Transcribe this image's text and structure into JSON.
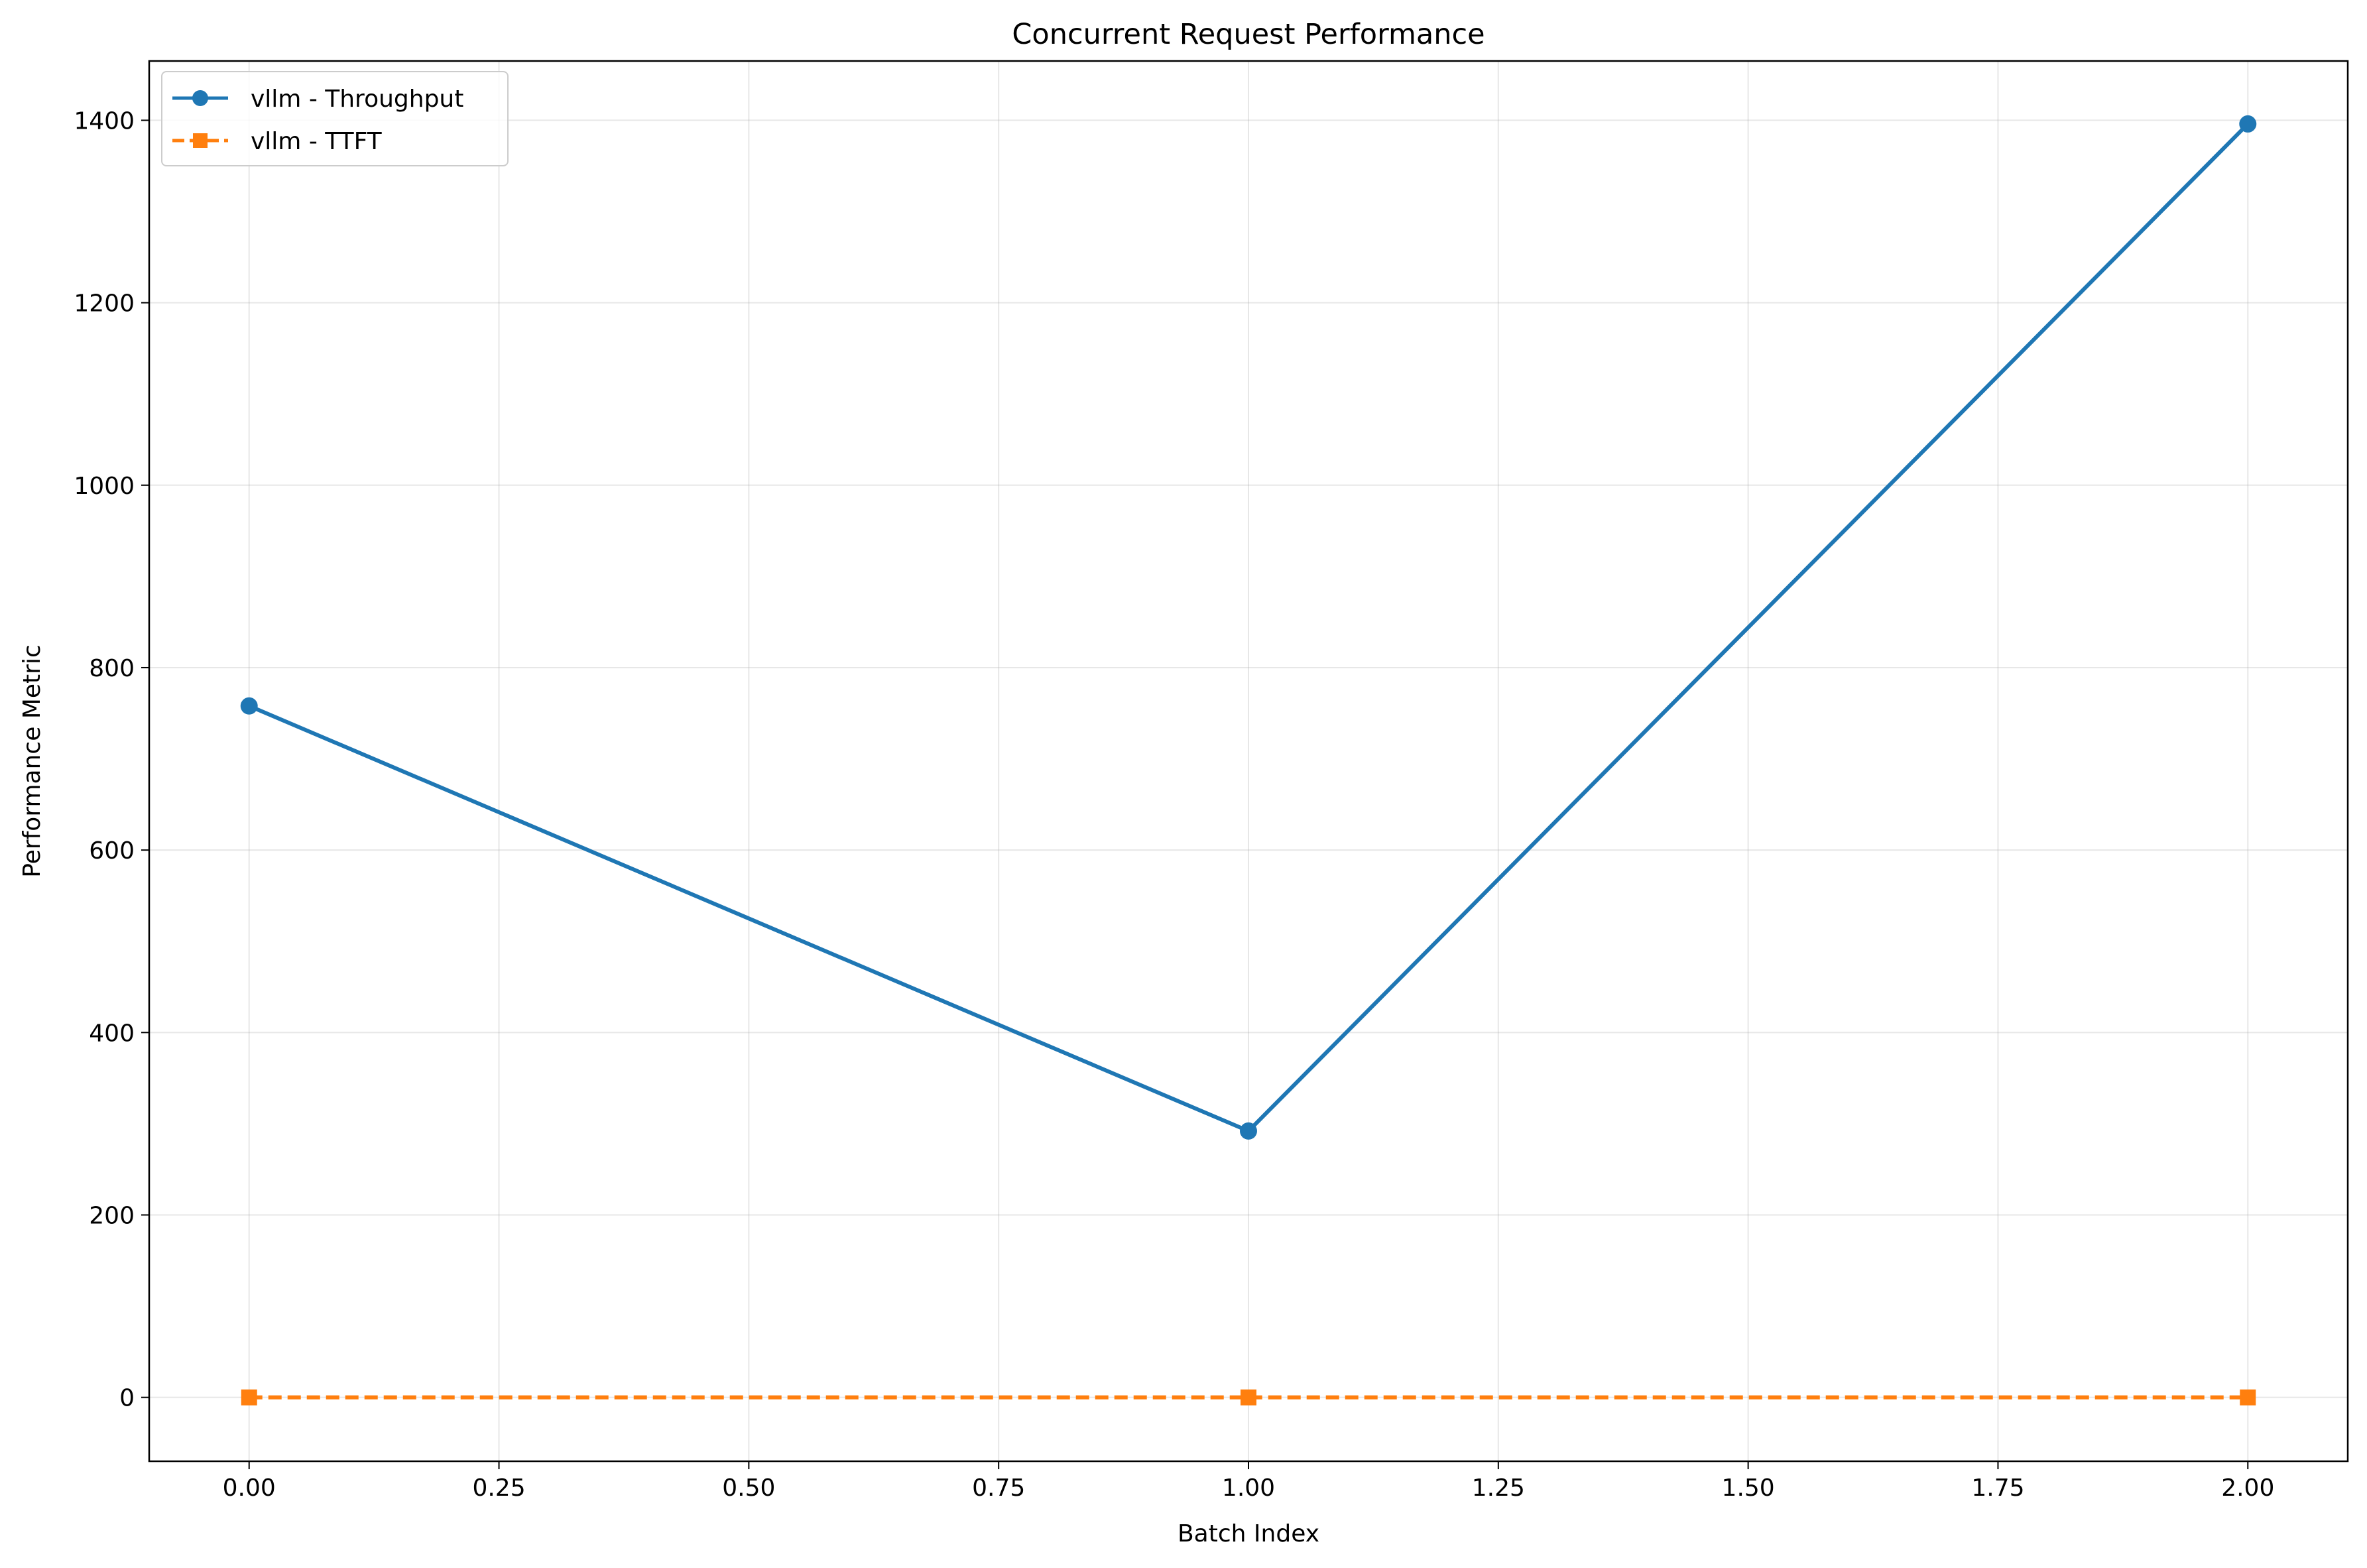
{
  "chart_data": {
    "type": "line",
    "title": "Concurrent Request Performance",
    "xlabel": "Batch Index",
    "ylabel": "Performance Metric",
    "x": [
      0,
      1,
      2
    ],
    "xlim": [
      -0.1,
      2.1
    ],
    "ylim": [
      -70,
      1465
    ],
    "xticks": [
      0,
      0.25,
      0.5,
      0.75,
      1.0,
      1.25,
      1.5,
      1.75,
      2.0
    ],
    "xtick_labels": [
      "0.00",
      "0.25",
      "0.50",
      "0.75",
      "1.00",
      "1.25",
      "1.50",
      "1.75",
      "2.00"
    ],
    "yticks": [
      0,
      200,
      400,
      600,
      800,
      1000,
      1200,
      1400
    ],
    "ytick_labels": [
      "0",
      "200",
      "400",
      "600",
      "800",
      "1000",
      "1200",
      "1400"
    ],
    "grid": true,
    "legend_position": "top-left",
    "series": [
      {
        "name": "vllm - Throughput",
        "values": [
          758,
          292,
          1396
        ],
        "color": "#1f77b4",
        "marker": "circle",
        "line": "solid"
      },
      {
        "name": "vllm - TTFT",
        "values": [
          0,
          0,
          0
        ],
        "color": "#ff7f0e",
        "marker": "square",
        "line": "dashed"
      }
    ]
  }
}
